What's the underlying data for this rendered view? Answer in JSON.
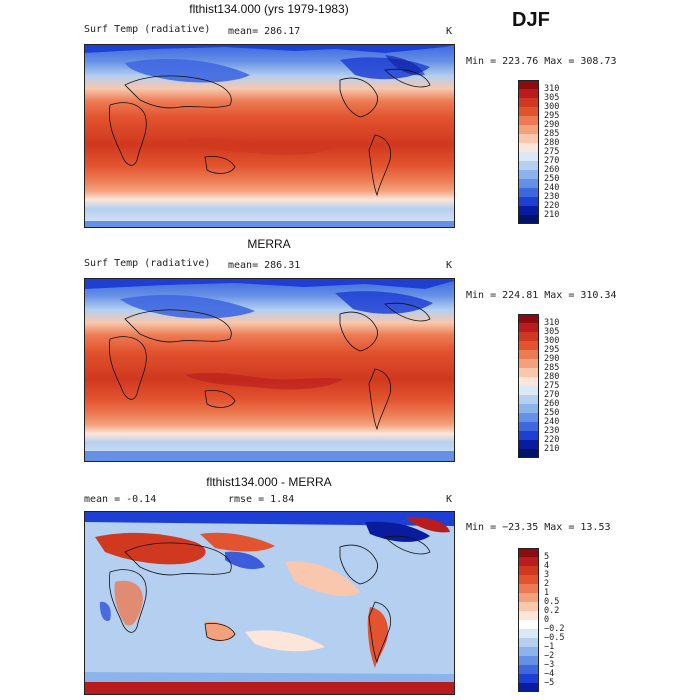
{
  "season": "DJF",
  "units": "K",
  "panels": [
    {
      "id": "model",
      "title": "flthist134.000 (yrs 1979-1983)",
      "variable": "Surf Temp (radiative)",
      "stat_text": "mean=  286.17",
      "units": "K",
      "minmax_text": "Min = 223.76  Max = 308.73",
      "colorbar": {
        "labels": [
          "310",
          "305",
          "300",
          "295",
          "290",
          "285",
          "280",
          "275",
          "270",
          "260",
          "250",
          "240",
          "230",
          "220",
          "210"
        ],
        "colors": [
          "#8b0b10",
          "#b91c1c",
          "#d0381f",
          "#e2532f",
          "#ec7a52",
          "#f3a07c",
          "#f8c7ad",
          "#fbe6d9",
          "#dbe8f6",
          "#b5cff0",
          "#8db3ec",
          "#6690e6",
          "#3f68e0",
          "#1e3fd4",
          "#0a1c9e",
          "#04136a"
        ]
      }
    },
    {
      "id": "obs",
      "title": "MERRA",
      "variable": "Surf Temp (radiative)",
      "stat_text": "mean=  286.31",
      "units": "K",
      "minmax_text": "Min = 224.81  Max = 310.34",
      "colorbar": {
        "labels": [
          "310",
          "305",
          "300",
          "295",
          "290",
          "285",
          "280",
          "275",
          "270",
          "260",
          "250",
          "240",
          "230",
          "220",
          "210"
        ],
        "colors": [
          "#8b0b10",
          "#b91c1c",
          "#d0381f",
          "#e2532f",
          "#ec7a52",
          "#f3a07c",
          "#f8c7ad",
          "#fbe6d9",
          "#dbe8f6",
          "#b5cff0",
          "#8db3ec",
          "#6690e6",
          "#3f68e0",
          "#1e3fd4",
          "#0a1c9e",
          "#04136a"
        ]
      }
    },
    {
      "id": "diff",
      "title": "flthist134.000 - MERRA",
      "stat_text": "mean =   -0.14",
      "rmse_text": "rmse =    1.84",
      "units": "K",
      "minmax_text": "Min = −23.35  Max =   13.53",
      "colorbar": {
        "labels": [
          "5",
          "4",
          "3",
          "2",
          "1",
          "0.5",
          "0.2",
          "0",
          "−0.2",
          "−0.5",
          "−1",
          "−2",
          "−3",
          "−4",
          "−5"
        ],
        "colors": [
          "#8b0b10",
          "#b91c1c",
          "#d0381f",
          "#e2532f",
          "#ec7a52",
          "#f3a07c",
          "#f8c7ad",
          "#fbe6d9",
          "#ffffff",
          "#dbe8f6",
          "#b5cff0",
          "#8db3ec",
          "#6690e6",
          "#3f68e0",
          "#1e3fd4",
          "#0a1c9e"
        ]
      }
    }
  ]
}
